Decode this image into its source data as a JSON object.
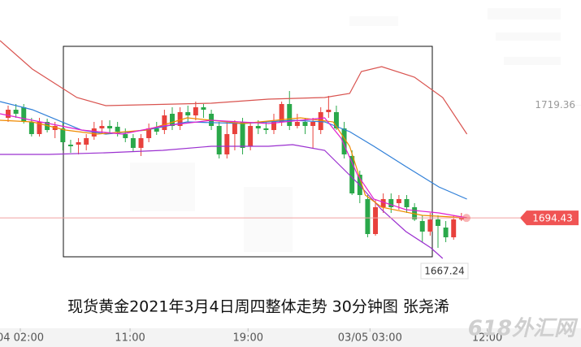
{
  "chart_data": {
    "type": "candlestick",
    "caption": "现货黄金2021年3月4日周四整体走势  30分钟图  张尧浠",
    "watermark": "618外汇网",
    "up_color": "#e8413c",
    "down_color": "#2aa84a",
    "open": [
      1716.6,
      1718.4,
      1718.94,
      1715.7,
      1713.0,
      1715.7,
      1713.9,
      1714.26,
      1710.66,
      1710.66,
      1710.66,
      1712.46,
      1714.26,
      1714.8,
      1714.62,
      1713.0,
      1712.1,
      1709.94,
      1712.1,
      1714.26,
      1713.9,
      1717.5,
      1714.8,
      1717.86,
      1717.14,
      1718.94,
      1717.5,
      1714.8,
      1708.5,
      1713.0,
      1715.7,
      1710.3,
      1714.8,
      1714.26,
      1713.9,
      1715.7,
      1719.66,
      1714.8,
      1715.7,
      1714.8,
      1713.9,
      1717.86,
      1717.86,
      1714.26,
      1708.14,
      1704.0,
      1698.6,
      1690.86,
      1696.8,
      1698.6,
      1697.7,
      1698.6,
      1696.8,
      1693.74,
      1691.4,
      1694.1,
      1692.3,
      1690.14,
      1694.1
    ],
    "high": [
      1719.3,
      1719.66,
      1719.66,
      1716.6,
      1716.6,
      1716.42,
      1715.7,
      1715.7,
      1711.74,
      1712.1,
      1713.0,
      1715.7,
      1716.06,
      1716.06,
      1715.7,
      1714.26,
      1713.0,
      1713.0,
      1715.34,
      1715.7,
      1718.4,
      1718.94,
      1718.94,
      1719.3,
      1720.2,
      1719.66,
      1718.4,
      1715.7,
      1715.7,
      1716.06,
      1716.6,
      1715.7,
      1716.06,
      1715.7,
      1717.5,
      1720.2,
      1722.54,
      1717.5,
      1716.6,
      1716.6,
      1718.94,
      1721.46,
      1719.3,
      1715.7,
      1709.4,
      1704.9,
      1699.5,
      1698.6,
      1699.86,
      1699.86,
      1699.5,
      1699.5,
      1697.7,
      1695.0,
      1695.54,
      1695.0,
      1693.74,
      1695.0,
      1695.54
    ],
    "low": [
      1715.7,
      1716.6,
      1715.34,
      1712.46,
      1712.46,
      1713.36,
      1712.1,
      1709.4,
      1708.86,
      1708.5,
      1709.4,
      1711.74,
      1713.0,
      1713.0,
      1712.46,
      1711.2,
      1709.22,
      1708.14,
      1711.2,
      1712.82,
      1713.0,
      1713.9,
      1713.9,
      1715.7,
      1716.06,
      1716.6,
      1713.9,
      1707.6,
      1707.6,
      1709.4,
      1708.5,
      1709.4,
      1713.0,
      1713.0,
      1713.0,
      1714.8,
      1713.9,
      1714.26,
      1713.0,
      1709.76,
      1713.0,
      1716.6,
      1713.9,
      1707.6,
      1699.5,
      1697.7,
      1690.14,
      1690.5,
      1695.54,
      1695.54,
      1696.26,
      1695.54,
      1693.74,
      1689.06,
      1690.5,
      1687.8,
      1689.06,
      1689.6,
      1693.74
    ],
    "close": [
      1718.4,
      1717.5,
      1715.7,
      1713.0,
      1715.7,
      1713.9,
      1714.8,
      1711.2,
      1710.3,
      1711.2,
      1712.1,
      1714.26,
      1714.8,
      1714.26,
      1713.54,
      1712.1,
      1709.94,
      1712.1,
      1714.26,
      1713.54,
      1717.14,
      1714.8,
      1717.86,
      1717.14,
      1718.94,
      1718.4,
      1714.8,
      1708.5,
      1713.0,
      1715.34,
      1709.94,
      1714.8,
      1714.26,
      1713.9,
      1715.7,
      1719.66,
      1714.8,
      1715.7,
      1714.8,
      1715.7,
      1717.86,
      1718.4,
      1714.26,
      1708.5,
      1699.86,
      1699.5,
      1690.86,
      1696.8,
      1698.6,
      1696.8,
      1698.6,
      1696.8,
      1694.1,
      1691.4,
      1694.1,
      1692.66,
      1690.14,
      1694.1,
      1694.46
    ],
    "overlays": [
      {
        "color": "#d9534f",
        "x": [
          -1.04,
          3.1,
          8.8,
          12.5,
          26,
          33.3,
          40.5,
          43.7,
          45.2,
          47.8,
          52,
          55.6,
          58.7
        ],
        "values": [
          1733.7,
          1727.4,
          1721.1,
          1719.3,
          1719.84,
          1720.74,
          1721.1,
          1722.0,
          1726.86,
          1727.94,
          1725.6,
          1721.1,
          1713.0
        ]
      },
      {
        "color": "#9b30d0",
        "x": [
          -1.04,
          5.2,
          12.5,
          19.8,
          26,
          33.3,
          36.4,
          40.5,
          44.7,
          47.8,
          50.9,
          54.1,
          55.6
        ],
        "values": [
          1708.5,
          1708.5,
          1708.86,
          1709.4,
          1710.3,
          1710.3,
          1710.66,
          1709.4,
          1702.2,
          1696.26,
          1691.4,
          1687.8,
          1685.46
        ]
      },
      {
        "color": "#2f7fd8",
        "x": [
          -1.04,
          3.1,
          9.4,
          12.5,
          17.7,
          22.9,
          30.1,
          36.4,
          40.5,
          43.7,
          46.8,
          50.9,
          55.1,
          58.7
        ],
        "values": [
          1720.2,
          1718.4,
          1713.9,
          1713.0,
          1713.9,
          1715.7,
          1715.34,
          1716.06,
          1715.7,
          1713.54,
          1710.3,
          1705.8,
          1701.3,
          1698.6
        ]
      },
      {
        "color": "#f08a00",
        "x": [
          -1.04,
          3.1,
          7.3,
          11.4,
          17.7,
          22.9,
          30.1,
          37.4,
          41.6,
          43.7,
          45.7,
          47.8,
          53,
          58.7
        ],
        "values": [
          1716.06,
          1715.7,
          1713.9,
          1713.0,
          1713.9,
          1716.6,
          1715.34,
          1716.6,
          1715.7,
          1710.3,
          1699.5,
          1696.8,
          1695.0,
          1694.46
        ]
      },
      {
        "color": "#e020d0",
        "x": [
          -1.04,
          3.1,
          9.4,
          14.6,
          19.8,
          26,
          33.3,
          40.5,
          42.6,
          44.7,
          46.8,
          50.9,
          55.1,
          58.7
        ],
        "values": [
          1717.5,
          1716.06,
          1713.9,
          1713.0,
          1714.8,
          1716.06,
          1715.34,
          1716.6,
          1712.1,
          1704.0,
          1698.6,
          1696.26,
          1695.54,
          1694.46
        ]
      }
    ],
    "last_price": 1694.43,
    "low_label": 1667.24,
    "xlim": [
      -1.04,
      73.3
    ],
    "ylim": [
      1670.7,
      1742.7
    ],
    "yticks": [
      1719.36
    ],
    "xticks": [
      {
        "value": 1.56,
        "label": "04 02:00"
      },
      {
        "value": 15.6,
        "label": "11:00"
      },
      {
        "value": 30.7,
        "label": "19:00"
      },
      {
        "value": 46.3,
        "label": "03/05 03:00"
      },
      {
        "value": 61.3,
        "label": "12:00"
      }
    ]
  }
}
